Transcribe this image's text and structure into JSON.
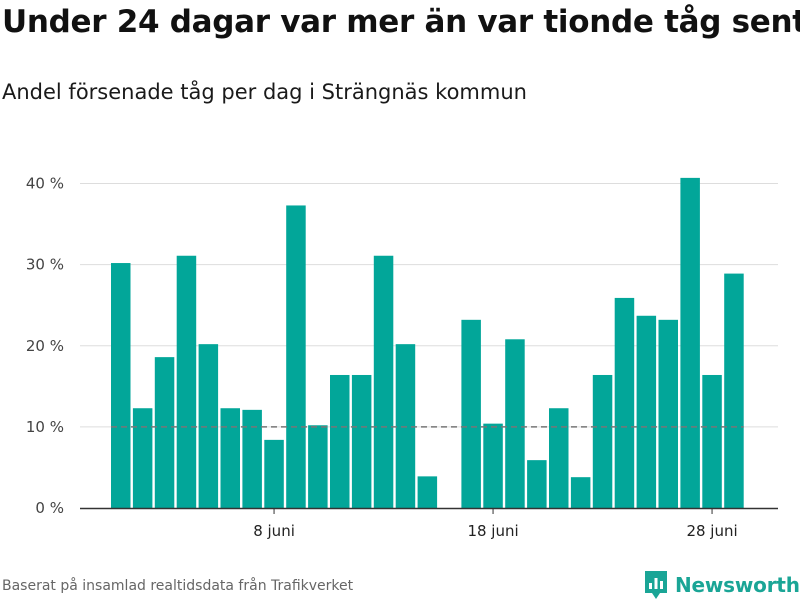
{
  "title": "Under 24 dagar var mer än var tionde tåg sent",
  "subtitle": "Andel försenade tåg per dag i Strängnäs kommun",
  "source": "Baserat på insamlad realtidsdata från Trafikverket",
  "brand": {
    "name": "Newsworthy",
    "icon": "newsworthy-logo-icon",
    "color": "#1aa596"
  },
  "chart_data": {
    "type": "bar",
    "ylim": [
      0,
      45
    ],
    "yticks": [
      0,
      10,
      20,
      30,
      40
    ],
    "ytick_labels": [
      "0 %",
      "10 %",
      "20 %",
      "30 %",
      "40 %"
    ],
    "xtick_labels": [
      {
        "label": "8 juni",
        "index": 7
      },
      {
        "label": "18 juni",
        "index": 17
      },
      {
        "label": "28 juni",
        "index": 27
      }
    ],
    "reference_line": {
      "value": 10,
      "style": "dashed",
      "color": "#777777"
    },
    "bar_color": "#02a699",
    "grid": true,
    "values": [
      30.2,
      12.3,
      18.6,
      31.1,
      20.2,
      12.3,
      12.1,
      8.4,
      37.3,
      10.2,
      16.4,
      16.4,
      31.1,
      20.2,
      3.9,
      null,
      23.2,
      10.4,
      20.8,
      5.9,
      12.3,
      3.8,
      16.4,
      25.9,
      23.7,
      23.2,
      40.7,
      16.4,
      28.9
    ]
  }
}
